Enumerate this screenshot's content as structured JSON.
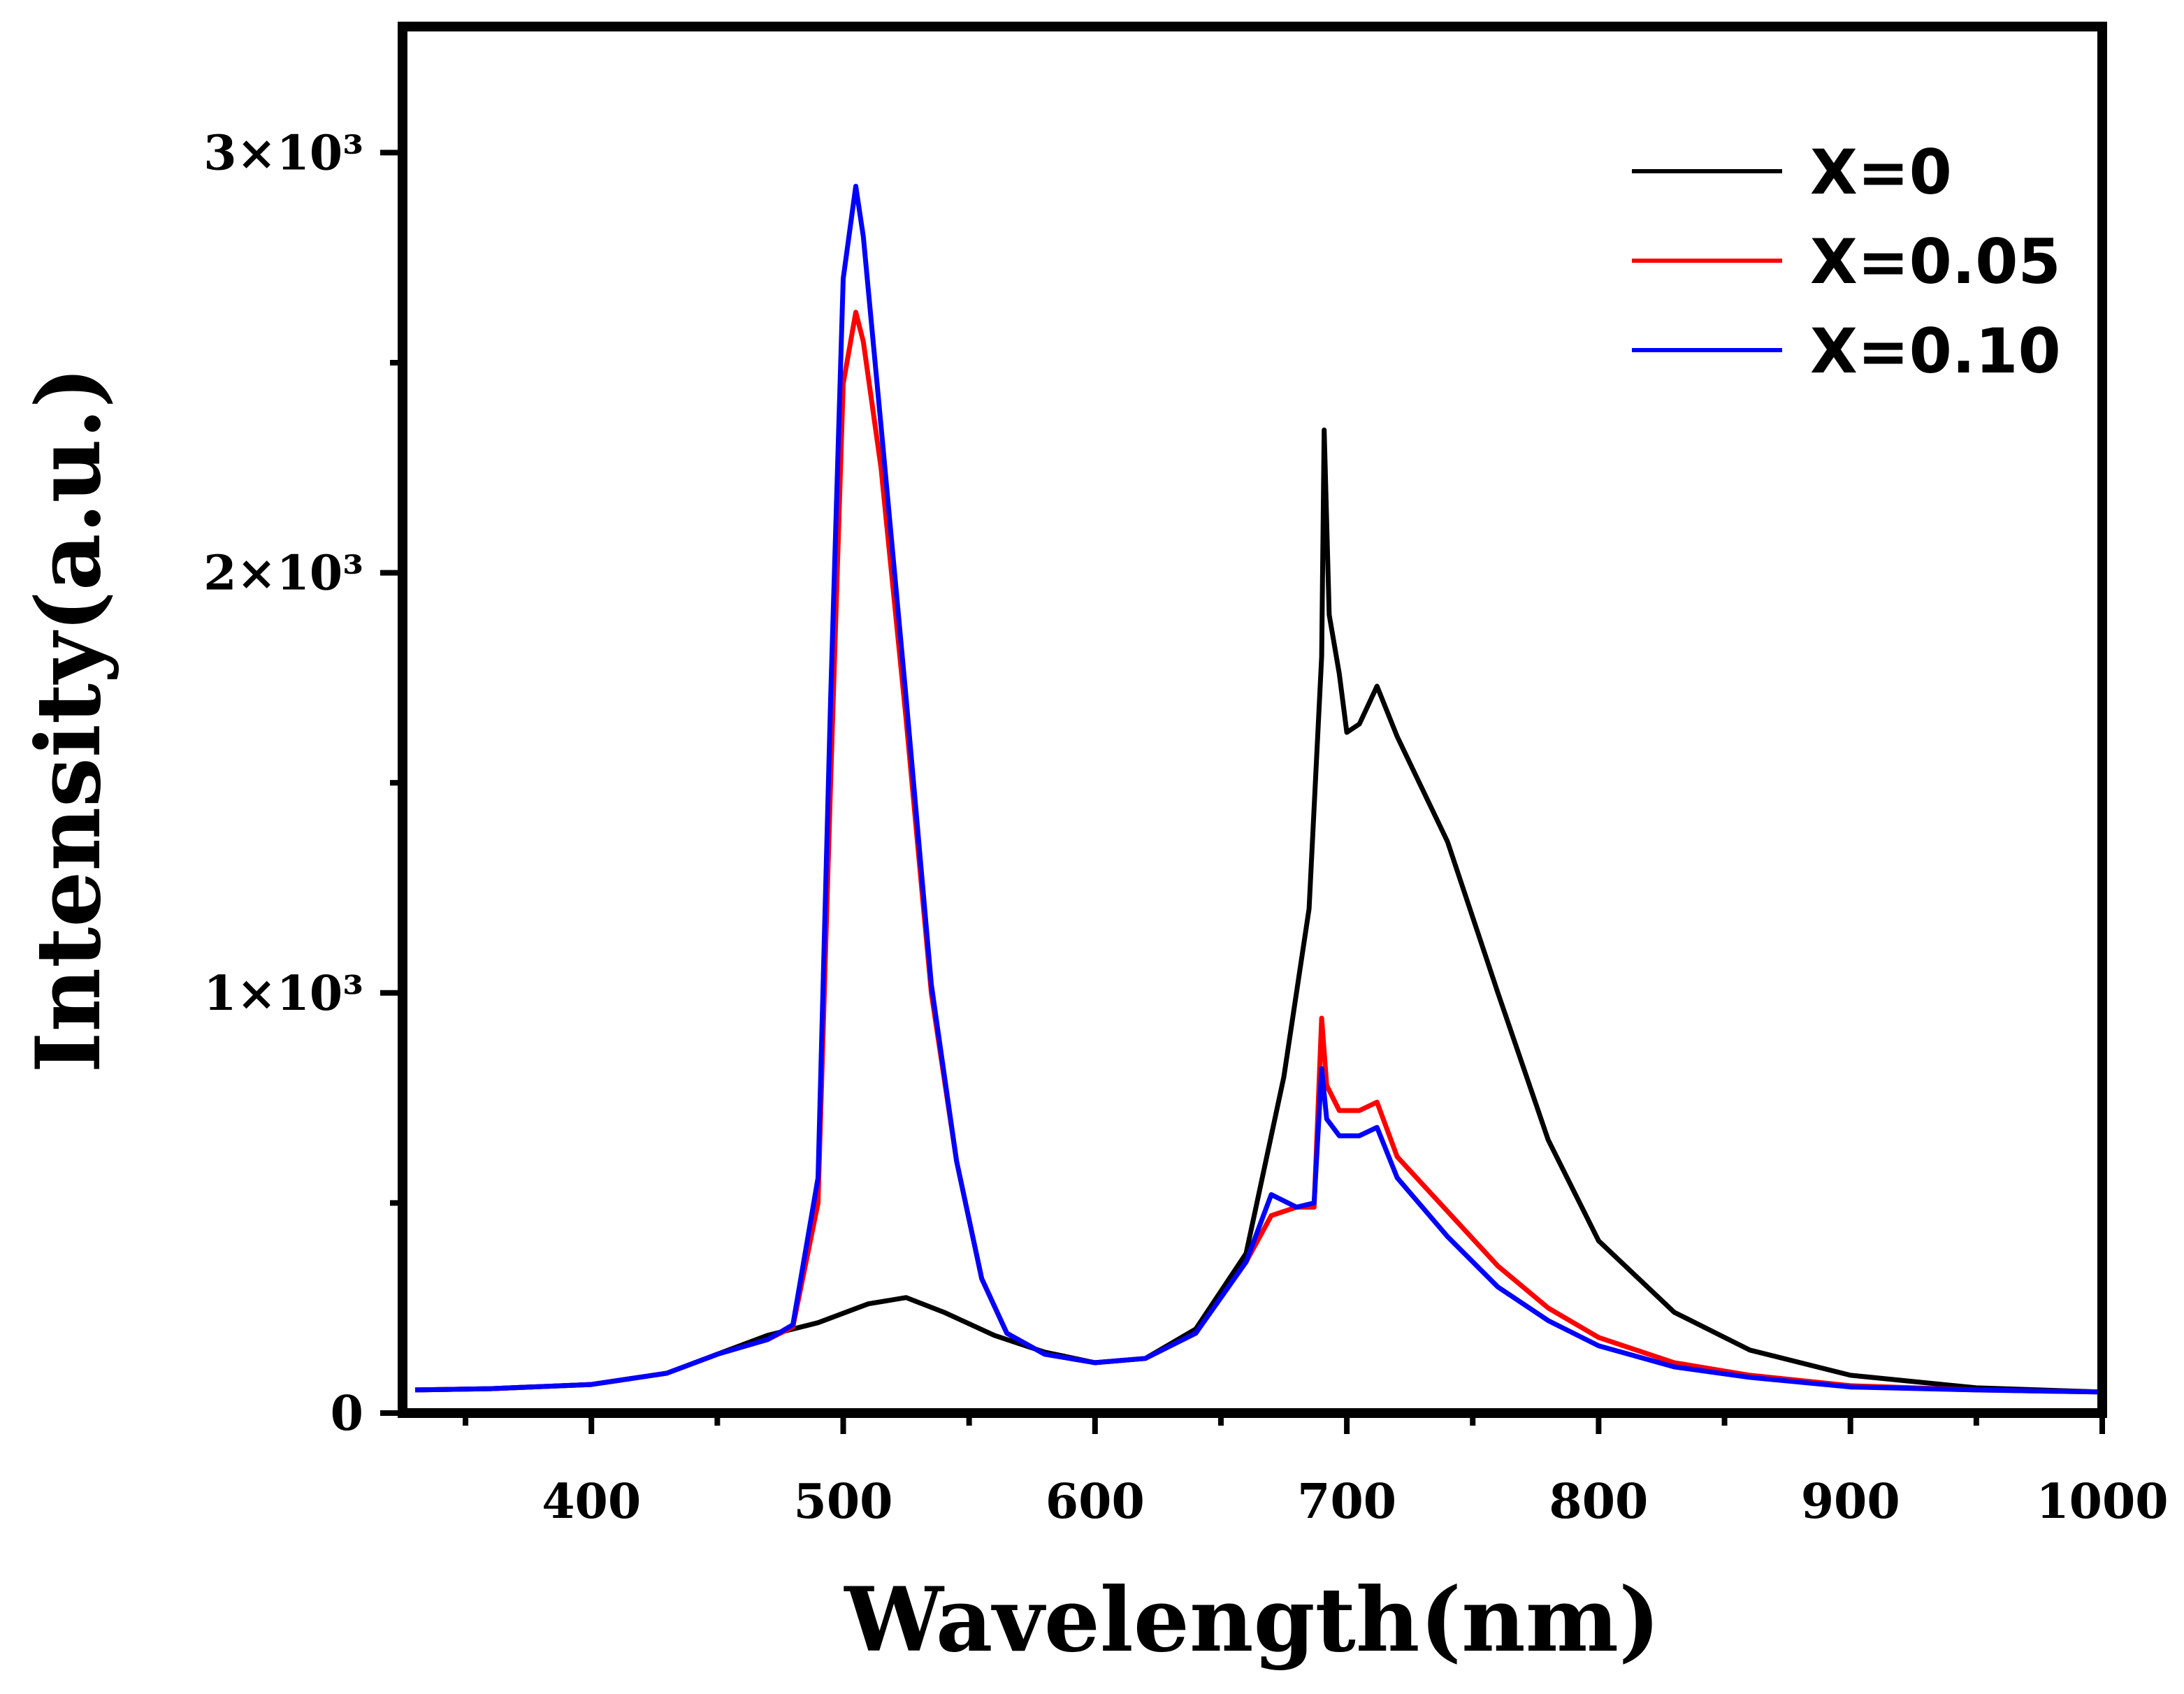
{
  "chart_data": {
    "type": "line",
    "title": "",
    "xlabel": "Wavelength(nm)",
    "ylabel": "Intensity(a.u.)",
    "xlim": [
      325,
      1000
    ],
    "ylim": [
      0,
      3300
    ],
    "x_ticks": [
      {
        "value": 400,
        "label": "400"
      },
      {
        "value": 500,
        "label": "500"
      },
      {
        "value": 600,
        "label": "600"
      },
      {
        "value": 700,
        "label": "700"
      },
      {
        "value": 800,
        "label": "800"
      },
      {
        "value": 900,
        "label": "900"
      },
      {
        "value": 1000,
        "label": "1000"
      }
    ],
    "x_minor_ticks": [
      350,
      450,
      550,
      650,
      750,
      850,
      950
    ],
    "y_ticks": [
      {
        "value": 0,
        "label": "0"
      },
      {
        "value": 1000,
        "label": "1×10³"
      },
      {
        "value": 2000,
        "label": "2×10³"
      },
      {
        "value": 3000,
        "label": "3×10³"
      }
    ],
    "y_minor_ticks": [
      500,
      1500,
      2500
    ],
    "grid": false,
    "legend_position": "top-right",
    "series": [
      {
        "name": "X=0",
        "color": "#000000",
        "x": [
          330,
          360,
          400,
          430,
          450,
          470,
          490,
          510,
          525,
          540,
          560,
          580,
          600,
          620,
          640,
          660,
          675,
          685,
          690,
          691,
          693,
          697,
          700,
          705,
          712,
          720,
          740,
          760,
          780,
          800,
          830,
          860,
          900,
          950,
          1000
        ],
        "y": [
          55,
          58,
          68,
          95,
          140,
          185,
          215,
          260,
          275,
          240,
          185,
          145,
          120,
          130,
          200,
          380,
          800,
          1200,
          1800,
          2340,
          1900,
          1760,
          1620,
          1640,
          1730,
          1610,
          1360,
          1000,
          650,
          410,
          240,
          150,
          90,
          60,
          50
        ]
      },
      {
        "name": "X=0.05",
        "color": "#ff0000",
        "x": [
          330,
          360,
          400,
          430,
          450,
          470,
          480,
          490,
          495,
          500,
          505,
          508,
          515,
          525,
          535,
          545,
          555,
          565,
          580,
          600,
          620,
          640,
          660,
          670,
          680,
          687,
          690,
          692,
          697,
          705,
          712,
          720,
          740,
          760,
          780,
          800,
          830,
          860,
          900,
          950,
          1000
        ],
        "y": [
          55,
          58,
          68,
          95,
          140,
          175,
          205,
          500,
          1500,
          2450,
          2620,
          2550,
          2250,
          1650,
          1000,
          600,
          320,
          190,
          140,
          120,
          130,
          190,
          360,
          470,
          490,
          490,
          940,
          780,
          720,
          720,
          740,
          610,
          480,
          350,
          250,
          180,
          120,
          90,
          65,
          55,
          50
        ]
      },
      {
        "name": "X=0.10",
        "color": "#0000ff",
        "x": [
          330,
          360,
          400,
          430,
          450,
          470,
          480,
          490,
          495,
          500,
          505,
          508,
          515,
          525,
          535,
          545,
          555,
          565,
          580,
          600,
          620,
          640,
          660,
          670,
          680,
          687,
          690,
          692,
          697,
          705,
          712,
          720,
          740,
          760,
          780,
          800,
          830,
          860,
          900,
          950,
          1000
        ],
        "y": [
          55,
          58,
          68,
          95,
          140,
          175,
          210,
          560,
          1700,
          2700,
          2920,
          2800,
          2350,
          1700,
          1020,
          600,
          320,
          190,
          140,
          120,
          130,
          190,
          360,
          520,
          490,
          500,
          820,
          700,
          660,
          660,
          680,
          560,
          420,
          300,
          220,
          160,
          110,
          85,
          62,
          55,
          50
        ]
      }
    ]
  }
}
